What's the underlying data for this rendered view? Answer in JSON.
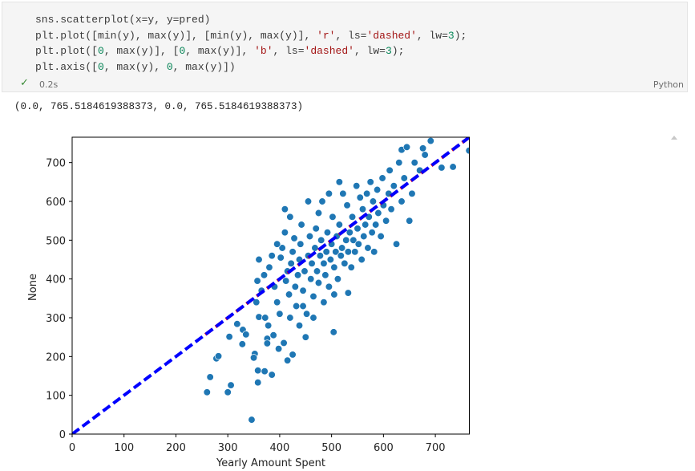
{
  "cell": {
    "code": [
      [
        {
          "text": "sns.scatterplot(x=y, y=pred)",
          "color": "#3b3b3b"
        }
      ],
      [
        {
          "text": "plt.plot([min(y), max(y)], [min(y), max(y)], ",
          "color": "#3b3b3b"
        },
        {
          "text": "'r'",
          "color": "#a31515"
        },
        {
          "text": ", ls=",
          "color": "#3b3b3b"
        },
        {
          "text": "'dashed'",
          "color": "#a31515"
        },
        {
          "text": ", lw=",
          "color": "#3b3b3b"
        },
        {
          "text": "3",
          "color": "#098658"
        },
        {
          "text": ");",
          "color": "#3b3b3b"
        }
      ],
      [
        {
          "text": "plt.plot([",
          "color": "#3b3b3b"
        },
        {
          "text": "0",
          "color": "#098658"
        },
        {
          "text": ", max(y)], [",
          "color": "#3b3b3b"
        },
        {
          "text": "0",
          "color": "#098658"
        },
        {
          "text": ", max(y)], ",
          "color": "#3b3b3b"
        },
        {
          "text": "'b'",
          "color": "#a31515"
        },
        {
          "text": ", ls=",
          "color": "#3b3b3b"
        },
        {
          "text": "'dashed'",
          "color": "#a31515"
        },
        {
          "text": ", lw=",
          "color": "#3b3b3b"
        },
        {
          "text": "3",
          "color": "#098658"
        },
        {
          "text": ");",
          "color": "#3b3b3b"
        }
      ],
      [
        {
          "text": "plt.axis([",
          "color": "#3b3b3b"
        },
        {
          "text": "0",
          "color": "#098658"
        },
        {
          "text": ", max(y), ",
          "color": "#3b3b3b"
        },
        {
          "text": "0",
          "color": "#098658"
        },
        {
          "text": ", max(y)])",
          "color": "#3b3b3b"
        }
      ]
    ],
    "status_icon": "✓",
    "duration": "0.2s",
    "language": "Python",
    "output": "(0.0, 765.5184619388373, 0.0, 765.5184619388373)"
  },
  "chart_data": {
    "type": "scatter",
    "x_label": "Yearly Amount Spent",
    "y_label": "None",
    "xlim": [
      0,
      765.5184619388373
    ],
    "ylim": [
      0,
      765.5184619388373
    ],
    "xticks": [
      0,
      100,
      200,
      300,
      400,
      500,
      600,
      700
    ],
    "yticks": [
      0,
      100,
      200,
      300,
      400,
      500,
      600,
      700
    ],
    "series": [
      {
        "type": "scatter",
        "color": "#1f77b4",
        "x": [
          346,
          260,
          266,
          300,
          306,
          278,
          282,
          303,
          318,
          329,
          335,
          328,
          352,
          350,
          358,
          358,
          371,
          385,
          376,
          376,
          360,
          357,
          504,
          532,
          734,
          765,
          691,
          712,
          676,
          635,
          380,
          390,
          395,
          400,
          402,
          405,
          410,
          412,
          415,
          418,
          420,
          422,
          425,
          428,
          430,
          432,
          435,
          438,
          440,
          442,
          445,
          448,
          450,
          452,
          455,
          458,
          460,
          462,
          465,
          468,
          470,
          472,
          475,
          478,
          480,
          482,
          485,
          488,
          490,
          492,
          495,
          498,
          500,
          502,
          505,
          508,
          510,
          512,
          515,
          518,
          520,
          522,
          525,
          528,
          530,
          532,
          535,
          538,
          540,
          542,
          545,
          548,
          550,
          552,
          555,
          558,
          560,
          562,
          565,
          568,
          570,
          572,
          575,
          578,
          580,
          582,
          585,
          588,
          590,
          595,
          598,
          600,
          605,
          610,
          612,
          615,
          620,
          625,
          630,
          635,
          640,
          645,
          650,
          655,
          660,
          670,
          680,
          355,
          365,
          372,
          378,
          388,
          398,
          408,
          415,
          425,
          438,
          445,
          455,
          465,
          475,
          485,
          495,
          505,
          515,
          420,
          410,
          395,
          385,
          370,
          360
        ],
        "values": [
          37,
          108,
          147,
          108,
          126,
          195,
          201,
          251,
          284,
          269,
          257,
          232,
          207,
          197,
          164,
          133,
          162,
          153,
          246,
          234,
          302,
          395,
          263,
          364,
          689,
          731,
          756,
          687,
          737,
          733,
          430,
          380,
          340,
          310,
          455,
          480,
          520,
          395,
          420,
          360,
          300,
          440,
          470,
          505,
          380,
          330,
          410,
          450,
          490,
          540,
          370,
          420,
          250,
          310,
          460,
          510,
          400,
          440,
          355,
          480,
          530,
          420,
          390,
          460,
          500,
          600,
          440,
          410,
          470,
          520,
          380,
          450,
          490,
          560,
          430,
          470,
          510,
          400,
          540,
          460,
          480,
          620,
          440,
          500,
          590,
          470,
          520,
          430,
          560,
          500,
          470,
          640,
          530,
          490,
          610,
          450,
          580,
          510,
          540,
          620,
          480,
          560,
          650,
          520,
          600,
          470,
          540,
          630,
          570,
          510,
          660,
          590,
          550,
          620,
          680,
          580,
          640,
          490,
          700,
          600,
          660,
          740,
          550,
          620,
          700,
          680,
          720,
          340,
          370,
          300,
          280,
          255,
          220,
          235,
          190,
          205,
          280,
          330,
          600,
          300,
          570,
          340,
          620,
          360,
          650,
          560,
          580,
          490,
          460,
          410,
          450
        ]
      },
      {
        "type": "line",
        "color": "#ff0000",
        "dash": "dashed",
        "x": [
          256.67,
          765.5184619388373
        ],
        "values": [
          256.67,
          765.5184619388373
        ]
      },
      {
        "type": "line",
        "color": "#0000ff",
        "dash": "dashed",
        "x": [
          0,
          765.5184619388373
        ],
        "values": [
          0,
          765.5184619388373
        ]
      }
    ]
  }
}
